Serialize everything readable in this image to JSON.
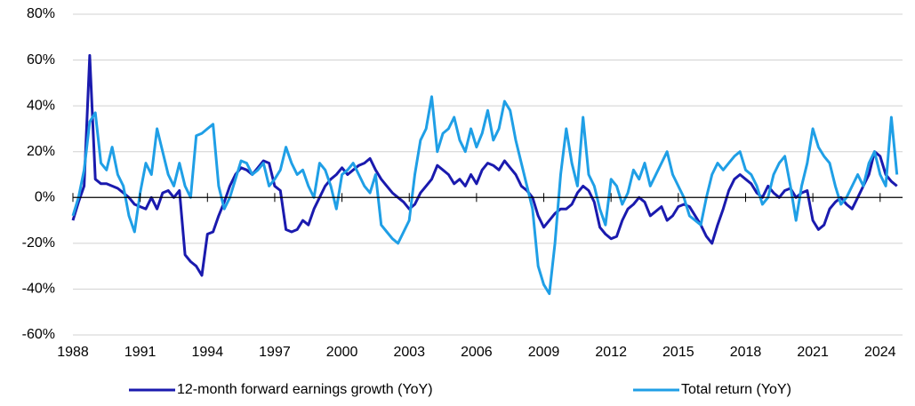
{
  "chart_data": {
    "type": "line",
    "x": [
      1988,
      1988.25,
      1988.5,
      1988.75,
      1989,
      1989.25,
      1989.5,
      1989.75,
      1990,
      1990.25,
      1990.5,
      1990.75,
      1991,
      1991.25,
      1991.5,
      1991.75,
      1992,
      1992.25,
      1992.5,
      1992.75,
      1993,
      1993.25,
      1993.5,
      1993.75,
      1994,
      1994.25,
      1994.5,
      1994.75,
      1995,
      1995.25,
      1995.5,
      1995.75,
      1996,
      1996.25,
      1996.5,
      1996.75,
      1997,
      1997.25,
      1997.5,
      1997.75,
      1998,
      1998.25,
      1998.5,
      1998.75,
      1999,
      1999.25,
      1999.5,
      1999.75,
      2000,
      2000.25,
      2000.5,
      2000.75,
      2001,
      2001.25,
      2001.5,
      2001.75,
      2002,
      2002.25,
      2002.5,
      2002.75,
      2003,
      2003.25,
      2003.5,
      2003.75,
      2004,
      2004.25,
      2004.5,
      2004.75,
      2005,
      2005.25,
      2005.5,
      2005.75,
      2006,
      2006.25,
      2006.5,
      2006.75,
      2007,
      2007.25,
      2007.5,
      2007.75,
      2008,
      2008.25,
      2008.5,
      2008.75,
      2009,
      2009.25,
      2009.5,
      2009.75,
      2010,
      2010.25,
      2010.5,
      2010.75,
      2011,
      2011.25,
      2011.5,
      2011.75,
      2012,
      2012.25,
      2012.5,
      2012.75,
      2013,
      2013.25,
      2013.5,
      2013.75,
      2014,
      2014.25,
      2014.5,
      2014.75,
      2015,
      2015.25,
      2015.5,
      2015.75,
      2016,
      2016.25,
      2016.5,
      2016.75,
      2017,
      2017.25,
      2017.5,
      2017.75,
      2018,
      2018.25,
      2018.5,
      2018.75,
      2019,
      2019.25,
      2019.5,
      2019.75,
      2020,
      2020.25,
      2020.5,
      2020.75,
      2021,
      2021.25,
      2021.5,
      2021.75,
      2022,
      2022.25,
      2022.5,
      2022.75,
      2023,
      2023.25,
      2023.5,
      2023.75,
      2024,
      2024.25,
      2024.5,
      2024.75
    ],
    "series": [
      {
        "name": "12-month forward earnings growth (YoY)",
        "color": "#1a1aae",
        "values": [
          -10,
          -2,
          5,
          62,
          8,
          6,
          6,
          5,
          4,
          2,
          0,
          -3,
          -4,
          -5,
          0,
          -5,
          2,
          3,
          0,
          3,
          -25,
          -28,
          -30,
          -34,
          -16,
          -15,
          -8,
          -2,
          5,
          10,
          13,
          12,
          10,
          13,
          16,
          15,
          5,
          3,
          -14,
          -15,
          -14,
          -10,
          -12,
          -5,
          0,
          5,
          8,
          10,
          13,
          10,
          12,
          14,
          15,
          17,
          12,
          8,
          5,
          2,
          0,
          -2,
          -5,
          -3,
          2,
          5,
          8,
          14,
          12,
          10,
          6,
          8,
          5,
          10,
          6,
          12,
          15,
          14,
          12,
          16,
          13,
          10,
          5,
          3,
          0,
          -8,
          -13,
          -10,
          -7,
          -5,
          -5,
          -3,
          2,
          5,
          3,
          -2,
          -13,
          -16,
          -18,
          -17,
          -10,
          -5,
          -3,
          0,
          -2,
          -8,
          -6,
          -4,
          -10,
          -8,
          -4,
          -3,
          -4,
          -8,
          -12,
          -17,
          -20,
          -12,
          -5,
          3,
          8,
          10,
          8,
          6,
          2,
          0,
          5,
          2,
          0,
          3,
          4,
          0,
          2,
          3,
          -10,
          -14,
          -12,
          -5,
          -2,
          0,
          -3,
          -5,
          0,
          5,
          10,
          20,
          18,
          10,
          7,
          5
        ]
      },
      {
        "name": "Total return (YoY)",
        "color": "#1f9fe6",
        "values": [
          -8,
          0,
          12,
          33,
          37,
          15,
          12,
          22,
          10,
          5,
          -8,
          -15,
          2,
          15,
          10,
          30,
          20,
          10,
          5,
          15,
          5,
          0,
          27,
          28,
          30,
          32,
          5,
          -5,
          0,
          8,
          16,
          15,
          10,
          12,
          15,
          5,
          8,
          12,
          22,
          15,
          10,
          12,
          5,
          0,
          15,
          12,
          5,
          -5,
          10,
          12,
          15,
          10,
          5,
          2,
          10,
          -12,
          -15,
          -18,
          -20,
          -15,
          -10,
          10,
          25,
          30,
          44,
          20,
          28,
          30,
          35,
          25,
          20,
          30,
          22,
          28,
          38,
          25,
          30,
          42,
          38,
          25,
          15,
          5,
          -5,
          -30,
          -38,
          -42,
          -20,
          10,
          30,
          15,
          5,
          35,
          10,
          5,
          -5,
          -12,
          8,
          5,
          -3,
          2,
          12,
          8,
          15,
          5,
          10,
          15,
          20,
          10,
          5,
          0,
          -8,
          -10,
          -12,
          0,
          10,
          15,
          12,
          15,
          18,
          20,
          12,
          10,
          5,
          -3,
          0,
          10,
          15,
          18,
          5,
          -10,
          5,
          15,
          30,
          22,
          18,
          15,
          5,
          -3,
          0,
          5,
          10,
          5,
          15,
          20,
          10,
          5,
          35,
          10
        ]
      }
    ],
    "xlim": [
      1988,
      2025
    ],
    "xticks": [
      1988,
      1991,
      1994,
      1997,
      2000,
      2003,
      2006,
      2009,
      2012,
      2015,
      2018,
      2021,
      2024
    ],
    "ylim": [
      -60,
      80
    ],
    "yticks": [
      {
        "value": -60,
        "label": "-60%"
      },
      {
        "value": -40,
        "label": "-40%"
      },
      {
        "value": -20,
        "label": "-20%"
      },
      {
        "value": 0,
        "label": "0%"
      },
      {
        "value": 20,
        "label": "20%"
      },
      {
        "value": 40,
        "label": "40%"
      },
      {
        "value": 60,
        "label": "60%"
      },
      {
        "value": 80,
        "label": "80%"
      }
    ],
    "grid": true,
    "legend": "bottom"
  }
}
